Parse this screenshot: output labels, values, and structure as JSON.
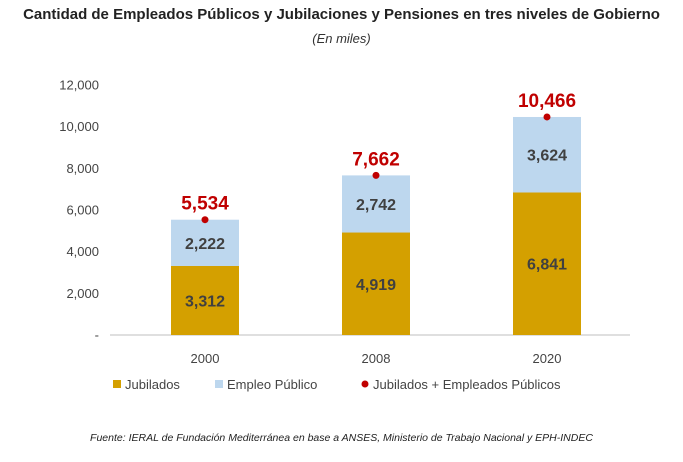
{
  "title": "Cantidad de Empleados Públicos y Jubilaciones y Pensiones en tres niveles de Gobierno",
  "subtitle": "(En miles)",
  "source": "Fuente: IERAL de Fundación Mediterránea en base a ANSES, Ministerio de Trabajo Nacional y EPH-INDEC",
  "colors": {
    "jubilados": "#d4a000",
    "empleo": "#bdd7ee",
    "total": "#c00000",
    "axis_text": "#444444"
  },
  "chart_data": {
    "type": "bar",
    "stacked": true,
    "categories": [
      "2000",
      "2008",
      "2020"
    ],
    "series": [
      {
        "name": "Jubilados",
        "values": [
          3312,
          4919,
          6841
        ],
        "labels": [
          "3,312",
          "4,919",
          "6,841"
        ]
      },
      {
        "name": "Empleo Público",
        "values": [
          2222,
          2742,
          3624
        ],
        "labels": [
          "2,222",
          "2,742",
          "3,624"
        ]
      }
    ],
    "totals": {
      "name": "Jubilados + Empleados Públicos",
      "values": [
        5534,
        7662,
        10466
      ],
      "labels": [
        "5,534",
        "7,662",
        "10,466"
      ]
    },
    "ylim": [
      0,
      12000
    ],
    "yticks": [
      0,
      2000,
      4000,
      6000,
      8000,
      10000,
      12000
    ],
    "ytick_labels": [
      "-",
      "2,000",
      "4,000",
      "6,000",
      "8,000",
      "10,000",
      "12,000"
    ],
    "legend": [
      "Jubilados",
      "Empleo Público",
      "Jubilados + Empleados Públicos"
    ],
    "legend_position": "bottom",
    "grid": false
  }
}
